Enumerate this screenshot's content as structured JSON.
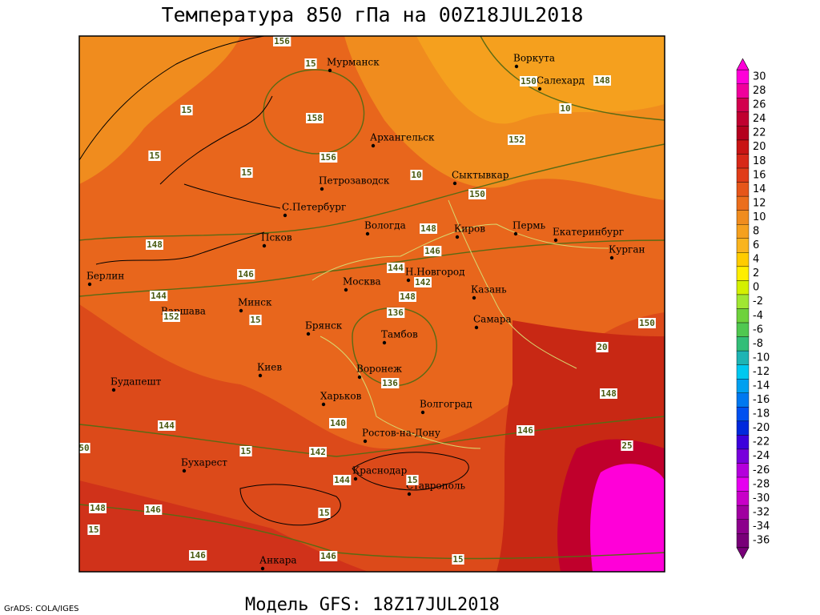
{
  "header": {
    "title": "Температура 850 гПа на 00Z18JUL2018"
  },
  "footer": {
    "model": "Модель GFS: 18Z17JUL2018",
    "credit": "GrADS: COLA/IGES"
  },
  "cities": [
    "Мурманск",
    "Воркута",
    "Салехард",
    "Архангельск",
    "Петрозаводск",
    "Сыктывкар",
    "С.Петербург",
    "Псков",
    "Вологда",
    "Киров",
    "Пермь",
    "Екатеринбург",
    "Курган",
    "Берлин",
    "Н.Новгород",
    "Москва",
    "Казань",
    "Минск",
    "Варшава",
    "Самара",
    "Брянск",
    "Тамбов",
    "Киев",
    "Воронеж",
    "Будапешт",
    "Харьков",
    "Волгоград",
    "Ростов-на-Дону",
    "Бухарест",
    "Краснодар",
    "Ставрополь",
    "Анкара"
  ],
  "contour_labels": [
    156,
    15,
    158,
    156,
    15,
    10,
    152,
    150,
    148,
    10,
    15,
    15,
    150,
    148,
    146,
    148,
    146,
    144,
    142,
    144,
    148,
    15,
    136,
    152,
    150,
    20,
    136,
    148,
    140,
    144,
    146,
    50,
    15,
    142,
    144,
    15,
    25,
    148,
    146,
    15,
    15,
    146,
    146,
    15
  ],
  "colorbar": {
    "levels": [
      30,
      28,
      26,
      24,
      22,
      20,
      18,
      16,
      14,
      12,
      10,
      8,
      6,
      4,
      2,
      0,
      -2,
      -4,
      -6,
      -8,
      -10,
      -12,
      -14,
      -16,
      -18,
      -20,
      -22,
      -24,
      -26,
      -28,
      -30,
      -32,
      -34,
      -36
    ],
    "colors": [
      "#ff00d8",
      "#f0009c",
      "#d2004e",
      "#c00030",
      "#b4001e",
      "#c81414",
      "#d72818",
      "#e03c18",
      "#e6561a",
      "#eb6e1c",
      "#f08c1e",
      "#f5a01e",
      "#fab41e",
      "#ffcc00",
      "#ffee00",
      "#d4f000",
      "#a0e632",
      "#6ed23c",
      "#50c850",
      "#32be78",
      "#1eb4b4",
      "#00c8f0",
      "#00a0f0",
      "#0078f0",
      "#0050f0",
      "#0028dc",
      "#3c00dc",
      "#7800dc",
      "#b400dc",
      "#e600f0",
      "#c800c8",
      "#a000a0",
      "#8c008c",
      "#780078"
    ]
  }
}
